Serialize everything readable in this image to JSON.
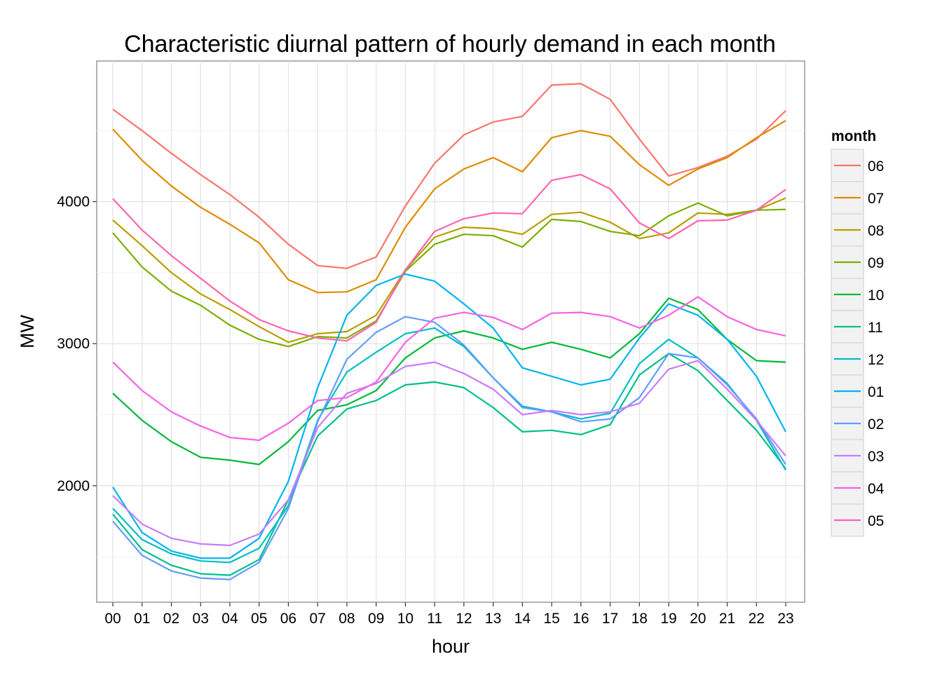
{
  "chart_data": {
    "type": "line",
    "title": "Characteristic diurnal pattern of hourly demand in each month",
    "xlabel": "hour",
    "ylabel": "MW",
    "x": [
      "00",
      "01",
      "02",
      "03",
      "04",
      "05",
      "06",
      "07",
      "08",
      "09",
      "10",
      "11",
      "12",
      "13",
      "14",
      "15",
      "16",
      "17",
      "18",
      "19",
      "20",
      "21",
      "22",
      "23"
    ],
    "yticks": [
      2000,
      3000,
      4000
    ],
    "ylim": [
      1180,
      4990
    ],
    "grid": true,
    "legend": {
      "title": "month",
      "placement": "right"
    },
    "series": [
      {
        "name": "06",
        "color": "#F8766D",
        "values": [
          4650,
          4500,
          4340,
          4190,
          4050,
          3890,
          3700,
          3550,
          3530,
          3610,
          3970,
          4270,
          4470,
          4560,
          4600,
          4820,
          4830,
          4720,
          4440,
          4180,
          4240,
          4320,
          4440,
          4640
        ]
      },
      {
        "name": "07",
        "color": "#DE8C00",
        "values": [
          4510,
          4290,
          4110,
          3960,
          3840,
          3710,
          3450,
          3360,
          3365,
          3450,
          3820,
          4090,
          4230,
          4310,
          4210,
          4450,
          4500,
          4460,
          4260,
          4115,
          4230,
          4310,
          4450,
          4570
        ]
      },
      {
        "name": "08",
        "color": "#B79F00",
        "values": [
          3870,
          3690,
          3500,
          3350,
          3240,
          3120,
          3010,
          3070,
          3085,
          3200,
          3520,
          3750,
          3820,
          3810,
          3770,
          3910,
          3925,
          3855,
          3740,
          3780,
          3920,
          3910,
          3940,
          4025
        ]
      },
      {
        "name": "09",
        "color": "#7CAE00",
        "values": [
          3780,
          3540,
          3370,
          3270,
          3130,
          3030,
          2980,
          3050,
          3040,
          3160,
          3510,
          3700,
          3770,
          3760,
          3680,
          3875,
          3860,
          3790,
          3760,
          3900,
          3990,
          3900,
          3940,
          3945
        ]
      },
      {
        "name": "10",
        "color": "#00BA38",
        "values": [
          2650,
          2460,
          2310,
          2200,
          2180,
          2150,
          2310,
          2530,
          2570,
          2670,
          2900,
          3040,
          3090,
          3040,
          2960,
          3010,
          2960,
          2900,
          3070,
          3320,
          3240,
          3030,
          2880,
          2870
        ]
      },
      {
        "name": "11",
        "color": "#00C08B",
        "values": [
          1800,
          1550,
          1440,
          1380,
          1370,
          1480,
          1900,
          2350,
          2540,
          2600,
          2710,
          2730,
          2690,
          2550,
          2380,
          2390,
          2360,
          2430,
          2780,
          2930,
          2810,
          2600,
          2390,
          2120
        ]
      },
      {
        "name": "12",
        "color": "#00BFC4",
        "values": [
          1840,
          1620,
          1520,
          1470,
          1460,
          1560,
          1860,
          2460,
          2800,
          2940,
          3070,
          3110,
          2980,
          2760,
          2560,
          2520,
          2470,
          2510,
          2860,
          3030,
          2900,
          2720,
          2460,
          2110
        ]
      },
      {
        "name": "01",
        "color": "#00B4F0",
        "values": [
          1990,
          1670,
          1540,
          1490,
          1490,
          1630,
          2030,
          2690,
          3200,
          3410,
          3490,
          3440,
          3280,
          3110,
          2830,
          2770,
          2710,
          2750,
          3040,
          3280,
          3200,
          3030,
          2770,
          2380
        ]
      },
      {
        "name": "02",
        "color": "#619CFF",
        "values": [
          1750,
          1510,
          1400,
          1350,
          1340,
          1460,
          1840,
          2450,
          2890,
          3080,
          3190,
          3150,
          2990,
          2760,
          2550,
          2520,
          2450,
          2470,
          2620,
          2930,
          2900,
          2710,
          2470,
          2150
        ]
      },
      {
        "name": "03",
        "color": "#C77CFF",
        "values": [
          1930,
          1730,
          1630,
          1590,
          1580,
          1660,
          1900,
          2410,
          2650,
          2720,
          2840,
          2870,
          2790,
          2680,
          2500,
          2530,
          2500,
          2520,
          2580,
          2820,
          2880,
          2680,
          2460,
          2210
        ]
      },
      {
        "name": "04",
        "color": "#F564E3",
        "values": [
          2870,
          2670,
          2520,
          2420,
          2340,
          2320,
          2440,
          2600,
          2620,
          2730,
          3010,
          3180,
          3220,
          3185,
          3100,
          3215,
          3220,
          3190,
          3110,
          3200,
          3330,
          3190,
          3100,
          3055
        ]
      },
      {
        "name": "05",
        "color": "#FF64B0",
        "values": [
          4020,
          3800,
          3620,
          3460,
          3300,
          3170,
          3090,
          3040,
          3020,
          3150,
          3520,
          3790,
          3880,
          3920,
          3915,
          4150,
          4190,
          4090,
          3850,
          3740,
          3865,
          3870,
          3940,
          4085
        ]
      }
    ]
  }
}
